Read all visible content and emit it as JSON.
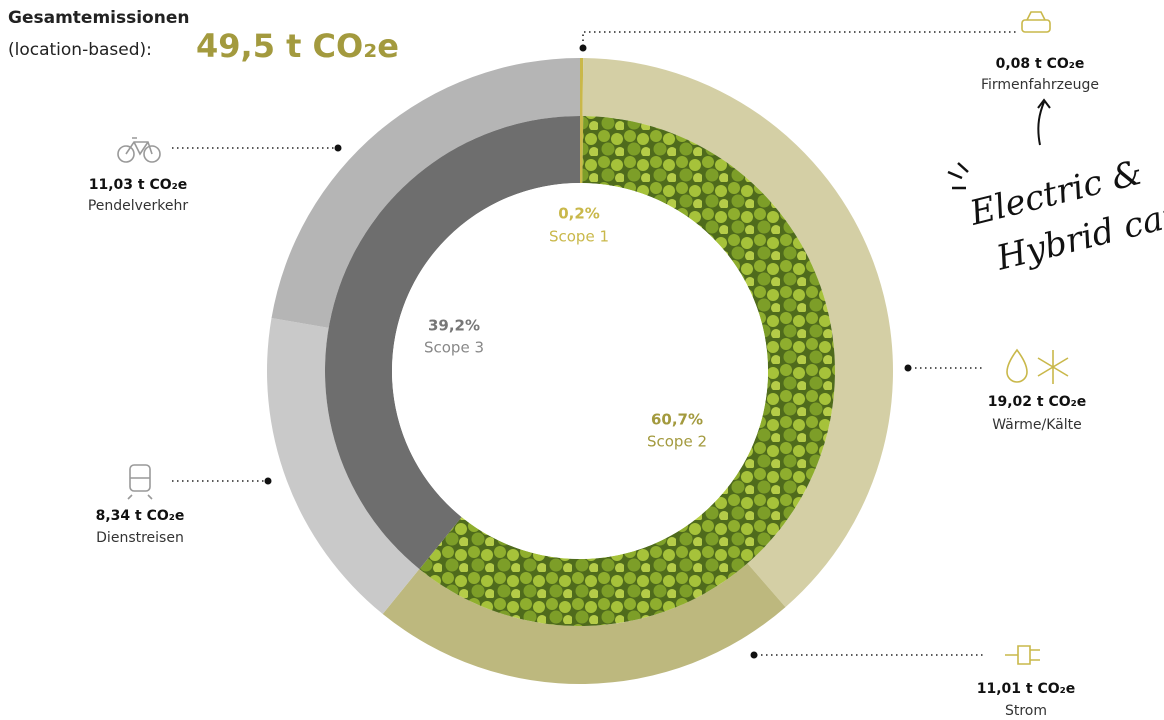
{
  "chart_data": {
    "type": "donut",
    "title": "Gesamtemissionen",
    "subtitle": "(location-based):",
    "total": {
      "value": 49.5,
      "label": "49,5 t CO₂e"
    },
    "inner": {
      "categories": [
        "Scope 1",
        "Scope 2",
        "Scope 3"
      ],
      "values": [
        0.2,
        60.7,
        39.2
      ],
      "value_labels": [
        "0,2%",
        "60,7%",
        "39,2%"
      ],
      "colors": [
        "#c9b84a",
        "#6f8f2a",
        "#6e6e6e"
      ]
    },
    "outer": {
      "categories": [
        "Firmenfahrzeuge",
        "Wärme/Kälte",
        "Strom",
        "Dienstreisen",
        "Pendelverkehr"
      ],
      "values": [
        0.08,
        19.02,
        11.01,
        8.34,
        11.03
      ],
      "value_labels": [
        "0,08 t CO₂e",
        "19,02 t CO₂e",
        "11,01 t CO₂e",
        "8,34 t CO₂e",
        "11,03 t CO₂e"
      ],
      "colors": [
        "#c9b84a",
        "#d4cfa5",
        "#bdb87e",
        "#c9c9c9",
        "#b5b5b5"
      ]
    },
    "annotation": [
      "Electric &",
      "Hybrid cars"
    ]
  }
}
